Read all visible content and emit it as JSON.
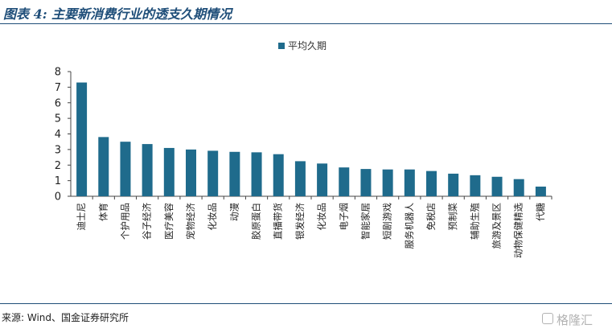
{
  "figure": {
    "title": "图表 4: 主要新消费行业的透支久期情况",
    "source": "来源: Wind、国金证券研究所"
  },
  "watermark": {
    "text": "格隆汇",
    "icon": "gelonghui-logo-icon"
  },
  "chart_data": {
    "type": "bar",
    "title": "",
    "xlabel": "",
    "ylabel": "",
    "ylim": [
      0,
      8
    ],
    "yticks": [
      "0",
      "1",
      "2",
      "3",
      "4",
      "5",
      "6",
      "7",
      "8"
    ],
    "grid": false,
    "legend_position": "top-center",
    "bar_color": "#1f6b8c",
    "categories": [
      "迪士尼",
      "体育",
      "个护用品",
      "谷子经济",
      "医疗美容",
      "宠物经济",
      "化妆品",
      "动漫",
      "胶原蛋白",
      "直播带货",
      "银发经济",
      "化妆品",
      "电子烟",
      "智能家居",
      "短剧游戏",
      "服务机器人",
      "免税店",
      "预制菜",
      "辅助生殖",
      "旅游及景区",
      "动物保健精选",
      "代糖"
    ],
    "series": [
      {
        "name": "平均久期",
        "values": [
          7.3,
          3.8,
          3.5,
          3.35,
          3.1,
          3.0,
          2.92,
          2.85,
          2.82,
          2.7,
          2.25,
          2.1,
          1.85,
          1.75,
          1.72,
          1.72,
          1.62,
          1.45,
          1.35,
          1.25,
          1.1,
          0.62
        ]
      }
    ]
  }
}
